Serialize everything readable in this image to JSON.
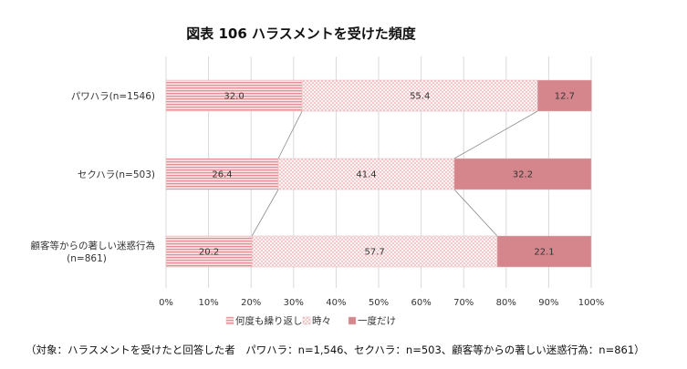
{
  "chart_data": {
    "type": "bar",
    "orientation": "horizontal",
    "stacked": true,
    "title": "図表 106 ハラスメントを受けた頻度",
    "categories": [
      [
        "パワハラ(n=1546)"
      ],
      [
        "セクハラ(n=503)"
      ],
      [
        "顧客等からの著しい迷惑行為",
        "(n=861)"
      ]
    ],
    "series": [
      {
        "name": "何度も繰り返し",
        "values": [
          32.0,
          26.4,
          20.2
        ],
        "labels": [
          "32.0",
          "26.4",
          "20.2"
        ],
        "color": "#e8a9ad",
        "pattern": "lines"
      },
      {
        "name": "時々",
        "values": [
          55.4,
          41.4,
          57.7
        ],
        "labels": [
          "55.4",
          "41.4",
          "57.7"
        ],
        "color": "#e3a0a5",
        "pattern": "dots"
      },
      {
        "name": "一度だけ",
        "values": [
          12.7,
          32.2,
          22.1
        ],
        "labels": [
          "12.7",
          "32.2",
          "22.1"
        ],
        "color": "#d4868c",
        "pattern": "solid"
      }
    ],
    "xlim": [
      0,
      100
    ],
    "xticks": [
      "0%",
      "10%",
      "20%",
      "30%",
      "40%",
      "50%",
      "60%",
      "70%",
      "80%",
      "90%",
      "100%"
    ],
    "grid": true,
    "legend_position": "bottom",
    "series_lines": true
  },
  "footnote": "（対象：ハラスメントを受けたと回答した者　パワハラ：n=1,546、セクハラ：n=503、顧客等からの著しい迷惑行為：n=861）"
}
